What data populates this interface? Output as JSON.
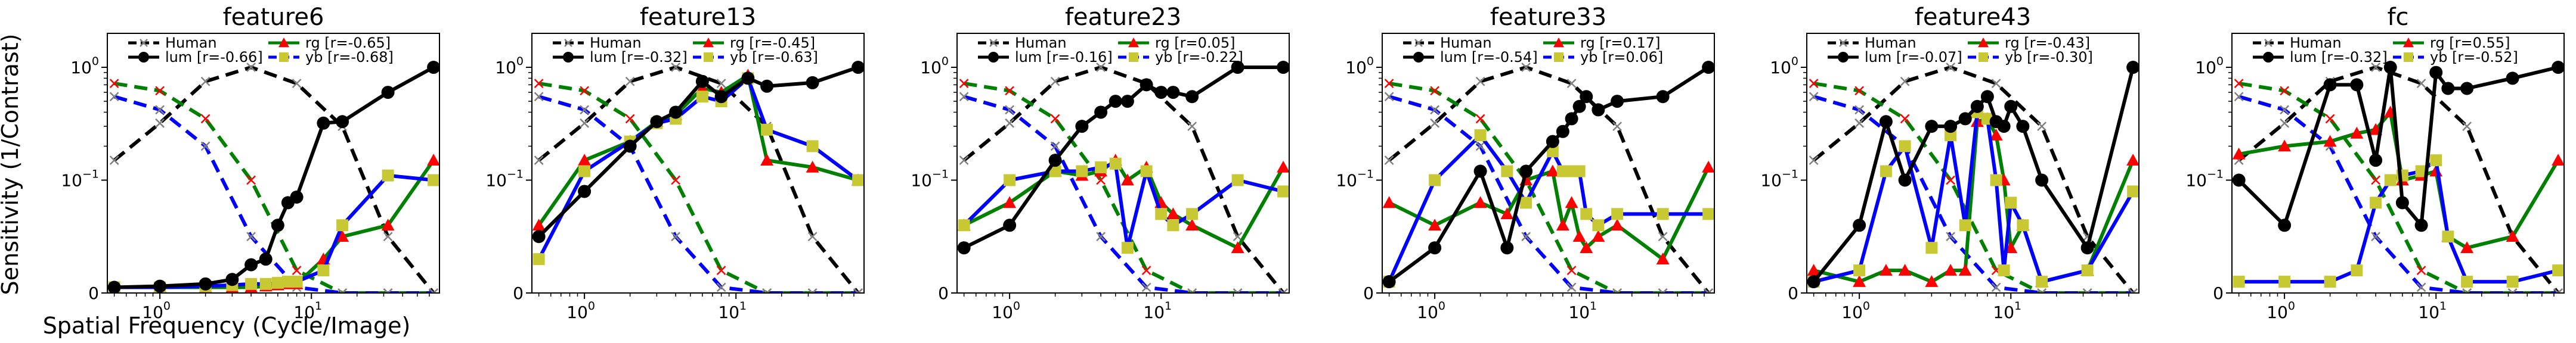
{
  "figure": {
    "ylabel": "Sensitivity (1/Contrast)",
    "xlabel": "Spatial Frequency (Cycle/Image)"
  },
  "colors": {
    "human": "#000000",
    "human_marker": "#808080",
    "lum": "#000000",
    "rg": "#008000",
    "rg_marker": "#ff0000",
    "yb": "#0000ff",
    "yb_marker": "#c8c832"
  },
  "legend_labels": {
    "human": "Human",
    "lum": "lum",
    "rg": "rg",
    "yb": "yb"
  },
  "chart_data": [
    {
      "type": "line",
      "title": "feature6",
      "xscale": "log",
      "yscale": "symlog",
      "xlim": [
        0.45,
        70
      ],
      "ylim": [
        0,
        2
      ],
      "legend_position": "top",
      "r": {
        "lum": "[r=-0.66]",
        "rg": "[r=-0.65]",
        "yb": "[r=-0.68]"
      },
      "series": {
        "human": {
          "x": [
            0.5,
            1,
            2,
            4,
            8,
            16,
            32,
            64
          ],
          "y": [
            0.15,
            0.32,
            0.75,
            1.0,
            0.72,
            0.3,
            0.05,
            0.0
          ]
        },
        "human_rg": {
          "x": [
            0.5,
            1,
            2,
            4,
            8,
            16,
            32,
            64
          ],
          "y": [
            0.72,
            0.62,
            0.35,
            0.1,
            0.02,
            0.0,
            0.0,
            0.0
          ]
        },
        "human_yb": {
          "x": [
            0.5,
            1,
            2,
            4,
            8,
            16,
            32,
            64
          ],
          "y": [
            0.55,
            0.42,
            0.2,
            0.05,
            0.005,
            0.0,
            0.0,
            0.0
          ]
        },
        "lum": {
          "x": [
            0.5,
            1,
            2,
            3,
            4,
            5,
            6,
            7,
            8,
            12,
            16,
            32,
            64
          ],
          "y": [
            0.005,
            0.006,
            0.008,
            0.012,
            0.025,
            0.03,
            0.06,
            0.08,
            0.085,
            0.32,
            0.33,
            0.6,
            1.0
          ]
        },
        "rg": {
          "x": [
            0.5,
            1,
            2,
            3,
            4,
            5,
            6,
            7,
            8,
            12,
            16,
            32,
            64
          ],
          "y": [
            0.005,
            0.005,
            0.005,
            0.005,
            0.005,
            0.006,
            0.007,
            0.008,
            0.008,
            0.03,
            0.05,
            0.06,
            0.15
          ]
        },
        "yb": {
          "x": [
            0.5,
            1,
            2,
            3,
            4,
            5,
            6,
            7,
            8,
            12,
            16,
            32,
            64
          ],
          "y": [
            0.005,
            0.005,
            0.006,
            0.007,
            0.008,
            0.008,
            0.009,
            0.01,
            0.01,
            0.02,
            0.06,
            0.11,
            0.1
          ]
        }
      }
    },
    {
      "type": "line",
      "title": "feature13",
      "xscale": "log",
      "yscale": "symlog",
      "xlim": [
        0.45,
        70
      ],
      "ylim": [
        0,
        2
      ],
      "legend_position": "top",
      "r": {
        "lum": "[r=-0.32]",
        "rg": "[r=-0.45]",
        "yb": "[r=-0.63]"
      },
      "series": {
        "human": {
          "x": [
            0.5,
            1,
            2,
            4,
            8,
            16,
            32,
            64
          ],
          "y": [
            0.15,
            0.32,
            0.75,
            1.0,
            0.72,
            0.3,
            0.05,
            0.0
          ]
        },
        "human_rg": {
          "x": [
            0.5,
            1,
            2,
            4,
            8,
            16,
            32,
            64
          ],
          "y": [
            0.72,
            0.62,
            0.35,
            0.1,
            0.02,
            0.0,
            0.0,
            0.0
          ]
        },
        "human_yb": {
          "x": [
            0.5,
            1,
            2,
            4,
            8,
            16,
            32,
            64
          ],
          "y": [
            0.55,
            0.42,
            0.2,
            0.05,
            0.005,
            0.0,
            0.0,
            0.0
          ]
        },
        "lum": {
          "x": [
            0.5,
            1,
            2,
            3,
            4,
            6,
            8,
            12,
            16,
            32,
            64
          ],
          "y": [
            0.05,
            0.09,
            0.2,
            0.33,
            0.4,
            0.75,
            0.55,
            0.8,
            0.68,
            0.73,
            1.0
          ]
        },
        "rg": {
          "x": [
            0.5,
            1,
            2,
            3,
            4,
            6,
            8,
            12,
            16,
            32,
            64
          ],
          "y": [
            0.06,
            0.15,
            0.22,
            0.33,
            0.38,
            0.65,
            0.6,
            0.85,
            0.15,
            0.13,
            0.1
          ]
        },
        "yb": {
          "x": [
            0.5,
            1,
            2,
            3,
            4,
            6,
            8,
            12,
            16,
            32,
            64
          ],
          "y": [
            0.03,
            0.12,
            0.22,
            0.32,
            0.35,
            0.55,
            0.5,
            0.8,
            0.28,
            0.2,
            0.1
          ]
        }
      }
    },
    {
      "type": "line",
      "title": "feature23",
      "xscale": "log",
      "yscale": "symlog",
      "xlim": [
        0.45,
        70
      ],
      "ylim": [
        0,
        2
      ],
      "legend_position": "top",
      "r": {
        "lum": "[r=-0.16]",
        "rg": "[r=0.05]",
        "yb": "[r=-0.22]"
      },
      "series": {
        "human": {
          "x": [
            0.5,
            1,
            2,
            4,
            8,
            16,
            32,
            64
          ],
          "y": [
            0.15,
            0.32,
            0.75,
            1.0,
            0.72,
            0.3,
            0.05,
            0.0
          ]
        },
        "human_rg": {
          "x": [
            0.5,
            1,
            2,
            4,
            8,
            16,
            32,
            64
          ],
          "y": [
            0.72,
            0.62,
            0.35,
            0.1,
            0.02,
            0.0,
            0.0,
            0.0
          ]
        },
        "human_yb": {
          "x": [
            0.5,
            1,
            2,
            4,
            8,
            16,
            32,
            64
          ],
          "y": [
            0.55,
            0.42,
            0.2,
            0.05,
            0.005,
            0.0,
            0.0,
            0.0
          ]
        },
        "lum": {
          "x": [
            0.5,
            1,
            2,
            3,
            4,
            5,
            6,
            8,
            10,
            12,
            16,
            32,
            64
          ],
          "y": [
            0.04,
            0.06,
            0.15,
            0.3,
            0.4,
            0.5,
            0.5,
            0.7,
            0.6,
            0.6,
            0.55,
            1.0,
            1.0
          ]
        },
        "rg": {
          "x": [
            0.5,
            1,
            2,
            3,
            4,
            5,
            6,
            8,
            10,
            12,
            16,
            32,
            64
          ],
          "y": [
            0.06,
            0.08,
            0.12,
            0.11,
            0.12,
            0.15,
            0.1,
            0.13,
            0.08,
            0.07,
            0.06,
            0.04,
            0.13
          ]
        },
        "yb": {
          "x": [
            0.5,
            1,
            2,
            3,
            4,
            5,
            6,
            8,
            10,
            12,
            16,
            32,
            64
          ],
          "y": [
            0.06,
            0.1,
            0.12,
            0.12,
            0.13,
            0.14,
            0.04,
            0.12,
            0.07,
            0.06,
            0.07,
            0.1,
            0.09
          ]
        }
      }
    },
    {
      "type": "line",
      "title": "feature33",
      "xscale": "log",
      "yscale": "symlog",
      "xlim": [
        0.45,
        70
      ],
      "ylim": [
        0,
        2
      ],
      "legend_position": "top",
      "r": {
        "lum": "[r=-0.54]",
        "rg": "[r=0.17]",
        "yb": "[r=0.06]"
      },
      "series": {
        "human": {
          "x": [
            0.5,
            1,
            2,
            4,
            8,
            16,
            32,
            64
          ],
          "y": [
            0.15,
            0.32,
            0.75,
            1.0,
            0.72,
            0.3,
            0.05,
            0.0
          ]
        },
        "human_rg": {
          "x": [
            0.5,
            1,
            2,
            4,
            8,
            16,
            32,
            64
          ],
          "y": [
            0.72,
            0.62,
            0.35,
            0.1,
            0.02,
            0.0,
            0.0,
            0.0
          ]
        },
        "human_yb": {
          "x": [
            0.5,
            1,
            2,
            4,
            8,
            16,
            32,
            64
          ],
          "y": [
            0.55,
            0.42,
            0.2,
            0.05,
            0.005,
            0.0,
            0.0,
            0.0
          ]
        },
        "lum": {
          "x": [
            0.5,
            1,
            2,
            3,
            4,
            6,
            7,
            8,
            9,
            10,
            12,
            16,
            32,
            64
          ],
          "y": [
            0.01,
            0.04,
            0.12,
            0.04,
            0.12,
            0.22,
            0.27,
            0.35,
            0.45,
            0.55,
            0.42,
            0.5,
            0.55,
            1.0
          ]
        },
        "rg": {
          "x": [
            0.5,
            1,
            2,
            3,
            4,
            6,
            7,
            8,
            9,
            10,
            12,
            16,
            32,
            64
          ],
          "y": [
            0.08,
            0.06,
            0.08,
            0.07,
            0.1,
            0.12,
            0.06,
            0.08,
            0.05,
            0.04,
            0.05,
            0.06,
            0.03,
            0.13
          ]
        },
        "yb": {
          "x": [
            0.5,
            1,
            2,
            3,
            4,
            6,
            7,
            8,
            9,
            10,
            12,
            16,
            32,
            64
          ],
          "y": [
            0.01,
            0.1,
            0.25,
            0.12,
            0.08,
            0.18,
            0.12,
            0.12,
            0.12,
            0.07,
            0.06,
            0.07,
            0.07,
            0.07
          ]
        }
      }
    },
    {
      "type": "line",
      "title": "feature43",
      "xscale": "log",
      "yscale": "symlog",
      "xlim": [
        0.45,
        70
      ],
      "ylim": [
        0,
        2
      ],
      "legend_position": "top",
      "r": {
        "lum": "[r=-0.07]",
        "rg": "[r=-0.43]",
        "yb": "[r=-0.30]"
      },
      "series": {
        "human": {
          "x": [
            0.5,
            1,
            2,
            4,
            8,
            16,
            32,
            64
          ],
          "y": [
            0.15,
            0.32,
            0.75,
            1.0,
            0.72,
            0.3,
            0.05,
            0.0
          ]
        },
        "human_rg": {
          "x": [
            0.5,
            1,
            2,
            4,
            8,
            16,
            32,
            64
          ],
          "y": [
            0.72,
            0.62,
            0.35,
            0.1,
            0.02,
            0.0,
            0.0,
            0.0
          ]
        },
        "human_yb": {
          "x": [
            0.5,
            1,
            2,
            4,
            8,
            16,
            32,
            64
          ],
          "y": [
            0.55,
            0.42,
            0.2,
            0.05,
            0.005,
            0.0,
            0.0,
            0.0
          ]
        },
        "lum": {
          "x": [
            0.5,
            1,
            1.5,
            2,
            3,
            4,
            5,
            6,
            7,
            8,
            9,
            10,
            12,
            16,
            32,
            64
          ],
          "y": [
            0.01,
            0.06,
            0.33,
            0.1,
            0.3,
            0.3,
            0.35,
            0.45,
            0.55,
            0.33,
            0.3,
            0.45,
            0.3,
            0.1,
            0.04,
            1.0
          ]
        },
        "rg": {
          "x": [
            0.5,
            1,
            1.5,
            2,
            3,
            4,
            5,
            6,
            7,
            8,
            9,
            10,
            12,
            16,
            32,
            64
          ],
          "y": [
            0.02,
            0.01,
            0.02,
            0.02,
            0.01,
            0.02,
            0.02,
            0.33,
            0.35,
            0.25,
            0.1,
            0.04,
            0.06,
            0.01,
            0.02,
            0.15
          ]
        },
        "yb": {
          "x": [
            0.5,
            1,
            1.5,
            2,
            3,
            4,
            5,
            6,
            7,
            8,
            9,
            10,
            12,
            16,
            32,
            64
          ],
          "y": [
            0.01,
            0.02,
            0.12,
            0.2,
            0.04,
            0.25,
            0.06,
            0.4,
            0.35,
            0.1,
            0.02,
            0.08,
            0.06,
            0.01,
            0.02,
            0.09
          ]
        }
      }
    },
    {
      "type": "line",
      "title": "fc",
      "xscale": "log",
      "yscale": "symlog",
      "xlim": [
        0.45,
        70
      ],
      "ylim": [
        0,
        2
      ],
      "legend_position": "top",
      "r": {
        "lum": "[r=-0.32]",
        "rg": "[r=0.55]",
        "yb": "[r=-0.52]"
      },
      "series": {
        "human": {
          "x": [
            0.5,
            1,
            2,
            4,
            8,
            16,
            32,
            64
          ],
          "y": [
            0.15,
            0.32,
            0.75,
            1.0,
            0.72,
            0.3,
            0.05,
            0.0
          ]
        },
        "human_rg": {
          "x": [
            0.5,
            1,
            2,
            4,
            8,
            16,
            32,
            64
          ],
          "y": [
            0.72,
            0.62,
            0.35,
            0.1,
            0.02,
            0.0,
            0.0,
            0.0
          ]
        },
        "human_yb": {
          "x": [
            0.5,
            1,
            2,
            4,
            8,
            16,
            32,
            64
          ],
          "y": [
            0.55,
            0.42,
            0.2,
            0.05,
            0.005,
            0.0,
            0.0,
            0.0
          ]
        },
        "lum": {
          "x": [
            0.5,
            1,
            2,
            3,
            4,
            5,
            6,
            8,
            10,
            12,
            16,
            32,
            64
          ],
          "y": [
            0.1,
            0.06,
            0.7,
            0.7,
            0.15,
            1.0,
            0.08,
            0.06,
            0.9,
            0.65,
            0.65,
            0.8,
            1.0
          ]
        },
        "rg": {
          "x": [
            0.5,
            1,
            2,
            3,
            4,
            5,
            6,
            8,
            10,
            12,
            16,
            32,
            64
          ],
          "y": [
            0.17,
            0.2,
            0.22,
            0.26,
            0.28,
            0.4,
            0.1,
            0.11,
            0.12,
            0.05,
            0.04,
            0.05,
            0.15
          ]
        },
        "yb": {
          "x": [
            0.5,
            1,
            2,
            3,
            4,
            5,
            6,
            8,
            10,
            12,
            16,
            32,
            64
          ],
          "y": [
            0.01,
            0.01,
            0.01,
            0.02,
            0.08,
            0.1,
            0.11,
            0.12,
            0.15,
            0.05,
            0.01,
            0.01,
            0.02
          ]
        }
      }
    }
  ]
}
